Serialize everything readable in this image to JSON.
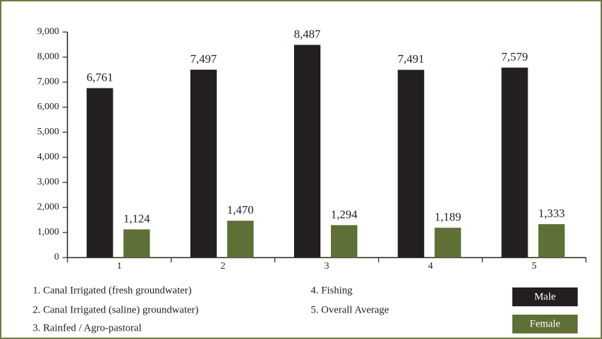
{
  "chart_data": {
    "type": "bar",
    "categories": [
      "1",
      "2",
      "3",
      "4",
      "5"
    ],
    "series": [
      {
        "name": "Male",
        "color": "#231f20",
        "values": [
          6761,
          7497,
          8487,
          7491,
          7579
        ],
        "value_labels": [
          "6,761",
          "7,497",
          "8,487",
          "7,491",
          "7,579"
        ]
      },
      {
        "name": "Female",
        "color": "#5e7035",
        "values": [
          1124,
          1470,
          1294,
          1189,
          1333
        ],
        "value_labels": [
          "1,124",
          "1,470",
          "1,294",
          "1,189",
          "1,333"
        ]
      }
    ],
    "ylim": [
      0,
      9000
    ],
    "yticks": [
      0,
      {
        "value": 1000,
        "label": "1,000"
      },
      {
        "value": 2000,
        "label": "2,000"
      },
      {
        "value": 3000,
        "label": "3,000"
      },
      {
        "value": 4000,
        "label": "4,000"
      },
      {
        "value": 5000,
        "label": "5,000"
      },
      {
        "value": 6000,
        "label": "6,000"
      },
      {
        "value": 7000,
        "label": "7,000"
      },
      {
        "value": 8000,
        "label": "8,000"
      },
      {
        "value": 9000,
        "label": "9,000"
      }
    ],
    "notes": [
      "1. Canal Irrigated (fresh groundwater)",
      "2. Canal Irrigated (saline) groundwater)",
      "3. Rainfed / Agro-pastoral",
      "4. Fishing",
      "5. Overall Average"
    ],
    "legend": "bottom-right"
  }
}
